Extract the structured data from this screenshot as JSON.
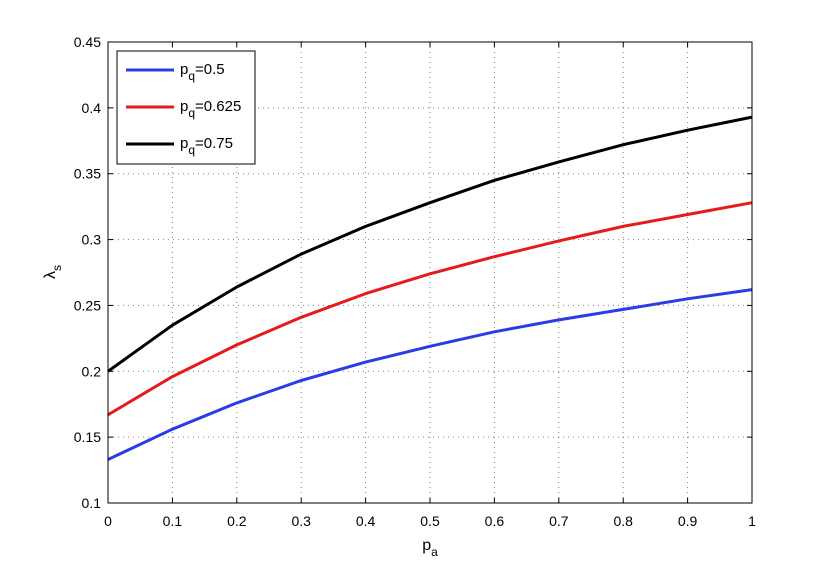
{
  "chart_data": {
    "type": "line",
    "xlabel": {
      "main": "p",
      "sub": "a"
    },
    "ylabel": {
      "main": "λ",
      "sub": "s"
    },
    "xlim": [
      0,
      1
    ],
    "ylim": [
      0.1,
      0.45
    ],
    "xticks": [
      "0",
      "0.1",
      "0.2",
      "0.3",
      "0.4",
      "0.5",
      "0.6",
      "0.7",
      "0.8",
      "0.9",
      "1"
    ],
    "yticks": [
      "0.1",
      "0.15",
      "0.2",
      "0.25",
      "0.3",
      "0.35",
      "0.4",
      "0.45"
    ],
    "grid": true,
    "legend_position": "top-left",
    "x": [
      0,
      0.1,
      0.2,
      0.3,
      0.4,
      0.5,
      0.6,
      0.7,
      0.8,
      0.9,
      1.0
    ],
    "series": [
      {
        "name": "p_q=0.5",
        "legend": {
          "main": "p",
          "sub": "q",
          "rest": "=0.5"
        },
        "color": "#2b3ce6",
        "values": [
          0.133,
          0.156,
          0.176,
          0.193,
          0.207,
          0.219,
          0.23,
          0.239,
          0.247,
          0.255,
          0.262
        ]
      },
      {
        "name": "p_q=0.625",
        "legend": {
          "main": "p",
          "sub": "q",
          "rest": "=0.625"
        },
        "color": "#e6191c",
        "values": [
          0.167,
          0.196,
          0.22,
          0.241,
          0.259,
          0.274,
          0.287,
          0.299,
          0.31,
          0.319,
          0.328
        ]
      },
      {
        "name": "p_q=0.75",
        "legend": {
          "main": "p",
          "sub": "q",
          "rest": "=0.75"
        },
        "color": "#000000",
        "values": [
          0.2,
          0.235,
          0.264,
          0.289,
          0.31,
          0.328,
          0.345,
          0.359,
          0.372,
          0.383,
          0.393
        ]
      }
    ]
  }
}
